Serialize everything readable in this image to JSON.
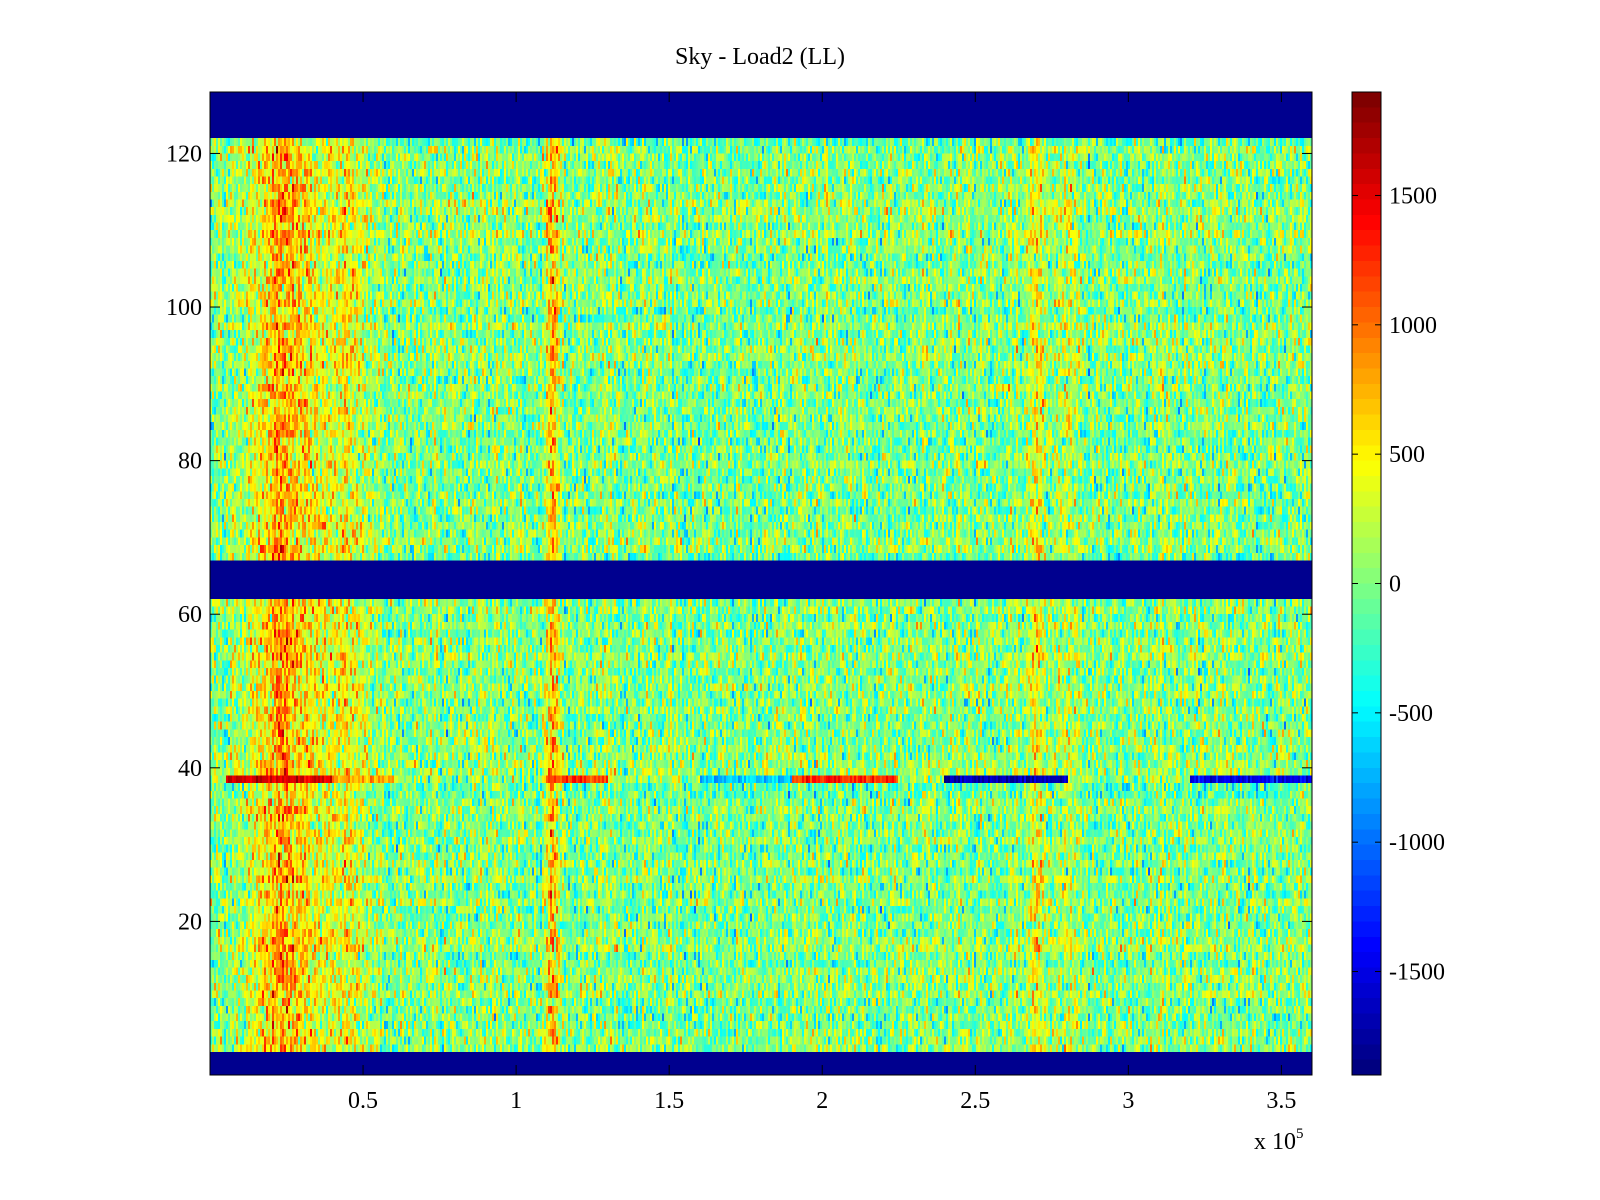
{
  "chart_data": {
    "type": "heatmap",
    "title": "Sky - Load2 (LL)",
    "xlabel": "",
    "ylabel": "",
    "x_multiplier_text": "x 10",
    "x_multiplier_exponent": "5",
    "xlim": [
      0,
      360000
    ],
    "ylim": [
      0,
      128
    ],
    "x_ticks": [
      50000,
      100000,
      150000,
      200000,
      250000,
      300000,
      350000
    ],
    "x_tick_labels": [
      "0.5",
      "1",
      "1.5",
      "2",
      "2.5",
      "3",
      "3.5"
    ],
    "y_ticks": [
      20,
      40,
      60,
      80,
      100,
      120
    ],
    "y_tick_labels": [
      "20",
      "40",
      "60",
      "80",
      "100",
      "120"
    ],
    "colormap": "jet",
    "clim": [
      -1900,
      1900
    ],
    "colorbar_ticks": [
      1500,
      1000,
      500,
      0,
      -500,
      -1000,
      -1500
    ],
    "colorbar_tick_labels": [
      "1500",
      "1000",
      "500",
      "0",
      "-500",
      "-1000",
      "-1500"
    ],
    "masked_rows": [
      [
        0,
        3
      ],
      [
        62,
        67
      ],
      [
        122,
        128
      ]
    ],
    "baseline_level": 0,
    "vertical_features": [
      {
        "x_center": 25000,
        "half_width": 13000,
        "level": 800
      },
      {
        "x_center": 45000,
        "half_width": 8000,
        "level": 450
      },
      {
        "x_center": 112000,
        "half_width": 2500,
        "level": 700
      },
      {
        "x_center": 270000,
        "half_width": 3000,
        "level": 450
      },
      {
        "x_center": 280000,
        "half_width": 6000,
        "level": 250
      }
    ],
    "row_39_segments": [
      {
        "x_start": 5000,
        "x_end": 40000,
        "level": 1600
      },
      {
        "x_start": 40000,
        "x_end": 60000,
        "level": 800
      },
      {
        "x_start": 110000,
        "x_end": 130000,
        "level": 1200
      },
      {
        "x_start": 160000,
        "x_end": 190000,
        "level": -700
      },
      {
        "x_start": 190000,
        "x_end": 225000,
        "level": 1300
      },
      {
        "x_start": 240000,
        "x_end": 280000,
        "level": -1700
      },
      {
        "x_start": 320000,
        "x_end": 360000,
        "level": -1500
      }
    ],
    "noise_level": 450,
    "colors": {
      "mask": "#00008f",
      "axis": "#000000",
      "background": "#ffffff"
    }
  }
}
